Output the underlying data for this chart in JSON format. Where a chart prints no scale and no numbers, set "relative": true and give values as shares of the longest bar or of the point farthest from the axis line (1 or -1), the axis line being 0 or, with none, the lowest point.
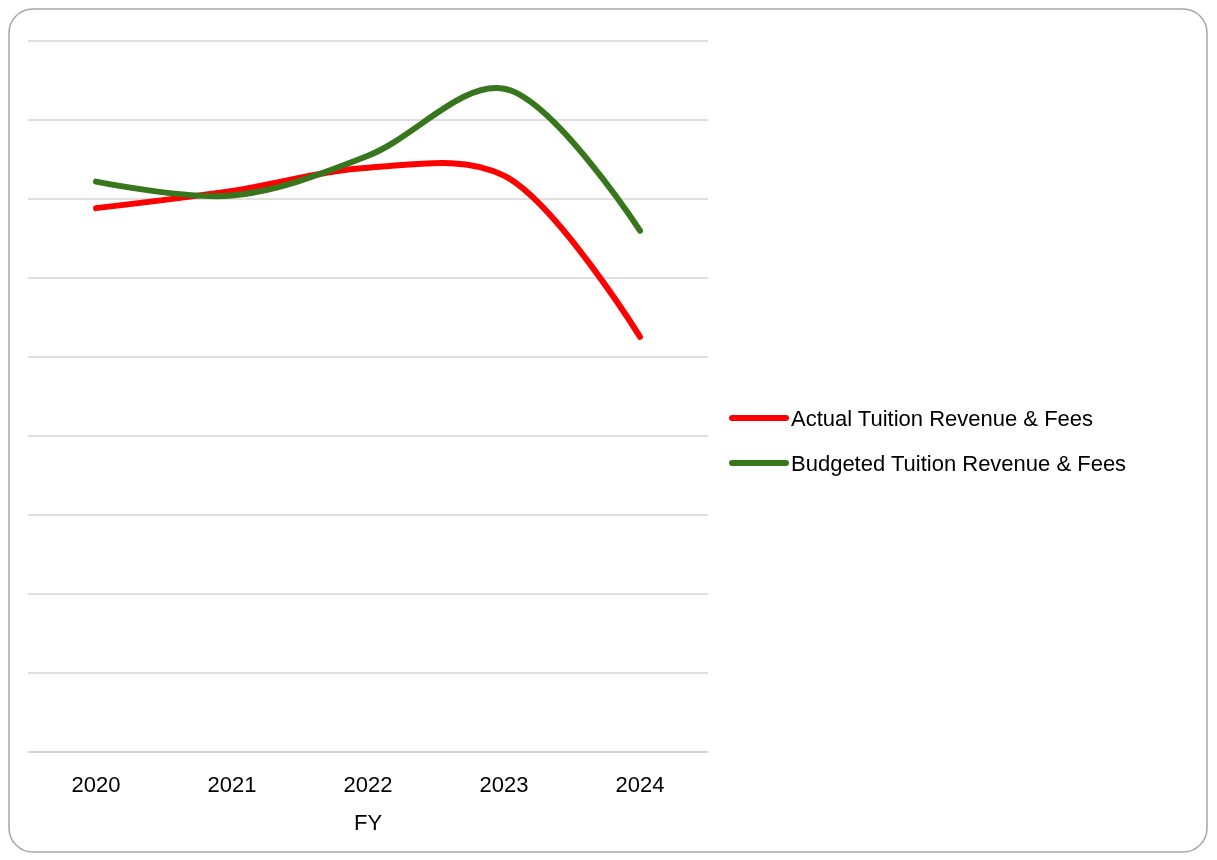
{
  "chart_data": {
    "type": "line",
    "xlabel": "FY",
    "categories": [
      "2020",
      "2021",
      "2022",
      "2023",
      "2024"
    ],
    "relative": true,
    "grid": "y",
    "legend": "right",
    "line_style": "solid",
    "series": [
      {
        "name": "Actual Tuition Revenue & Fees",
        "color": "#ff0000",
        "values": [
          0.82,
          0.846,
          0.881,
          0.869,
          0.626
        ]
      },
      {
        "name": "Budgeted Tuition Revenue & Fees",
        "color": "#38761d",
        "values": [
          0.86,
          0.839,
          0.899,
          1,
          0.786
        ]
      }
    ]
  }
}
